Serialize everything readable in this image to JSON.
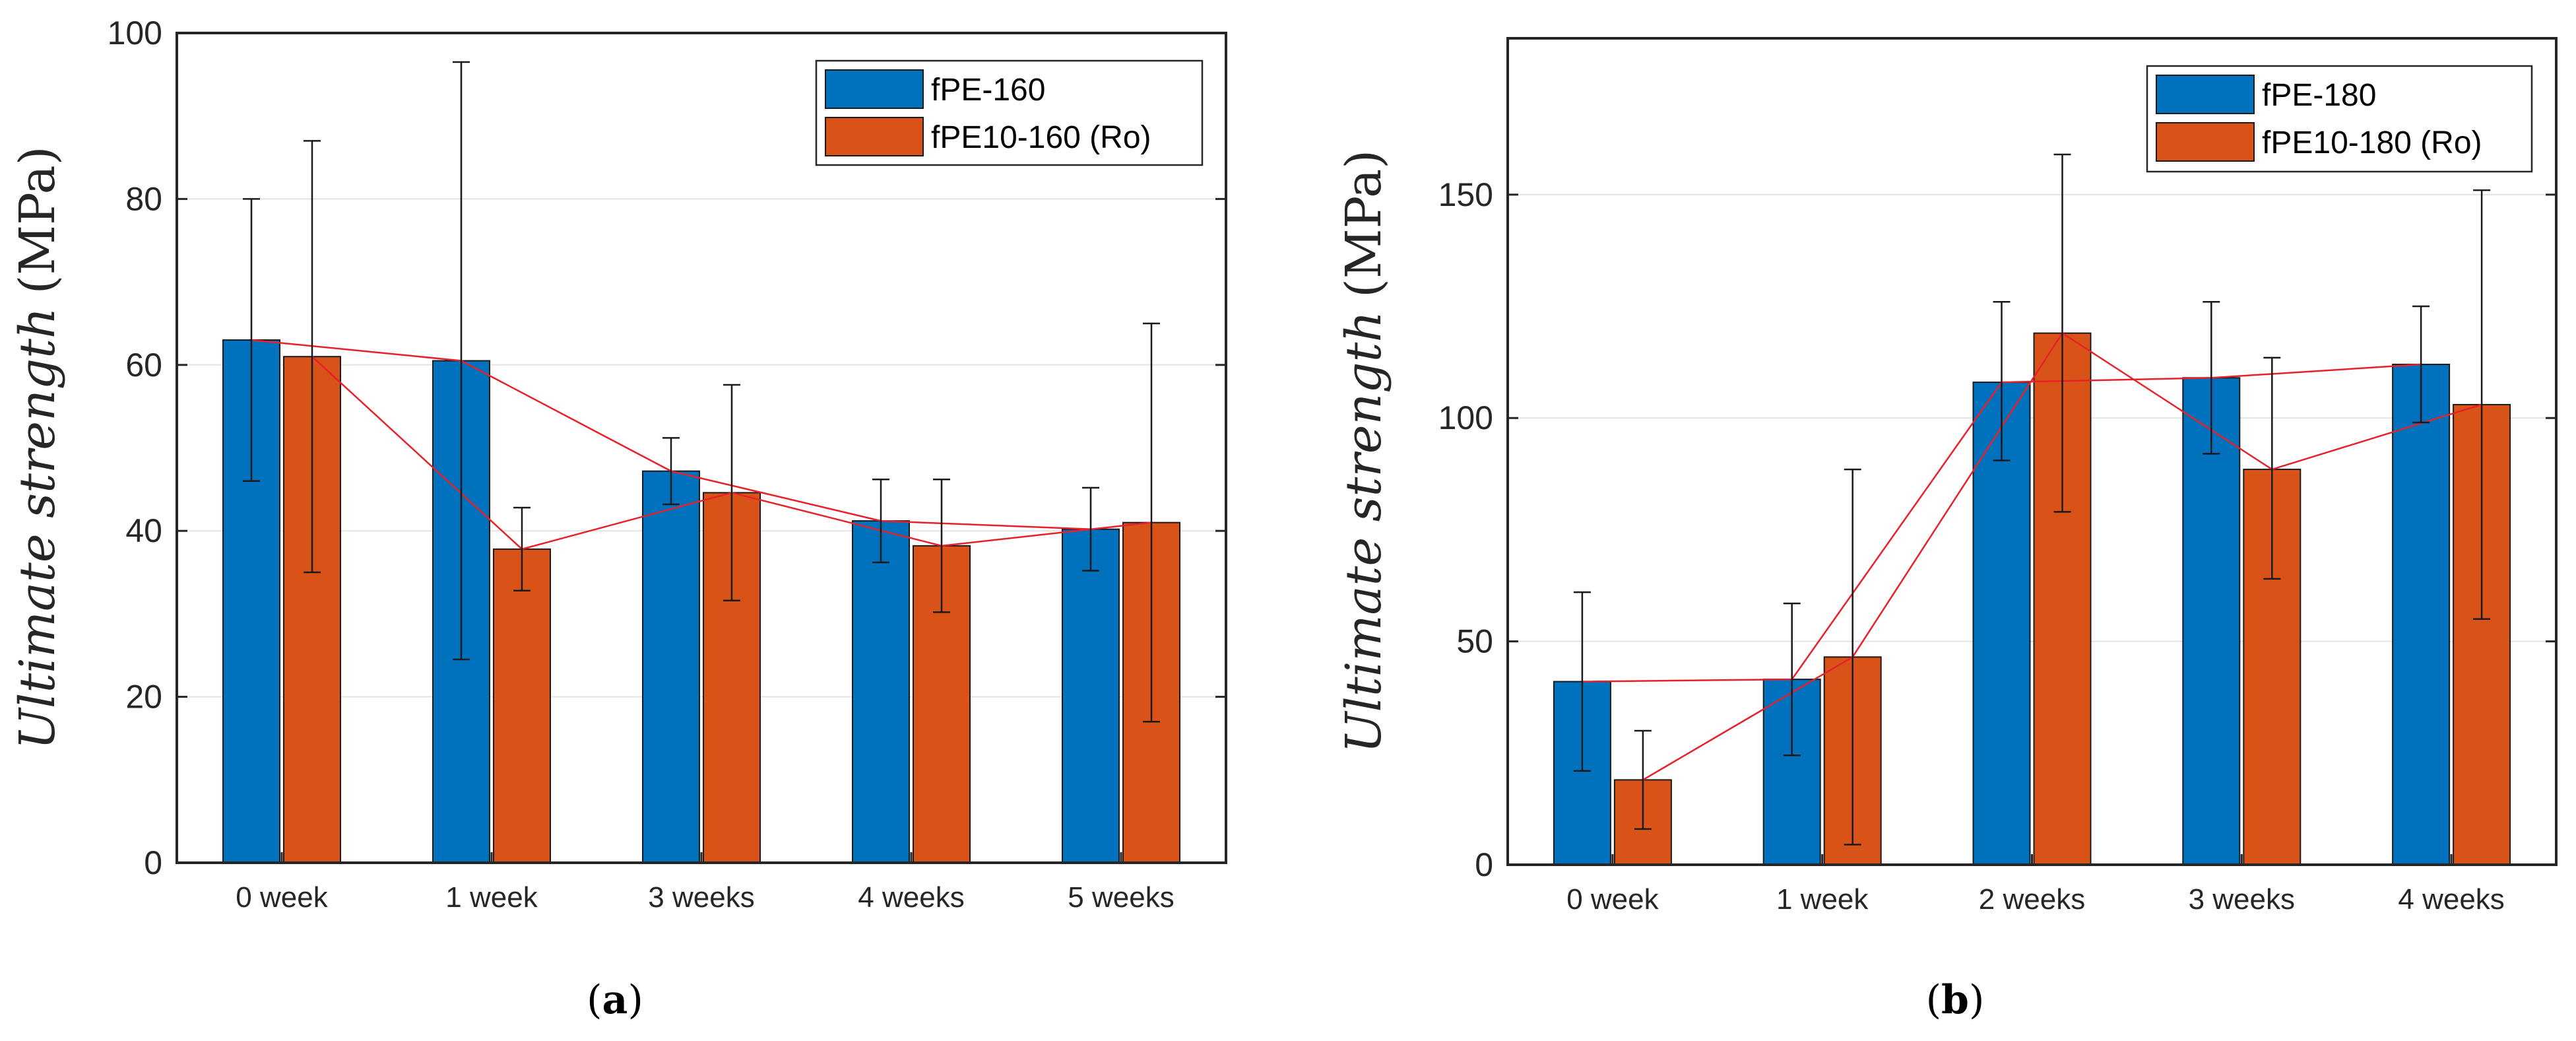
{
  "chart_data": [
    {
      "type": "bar",
      "panel_label": "a",
      "title": "",
      "xlabel": "",
      "ylabel": "Ultimate strength (MPa)",
      "ylabel_italic": "Ultimate strength",
      "ylabel_unit": "(MPa)",
      "ylim": [
        0,
        100
      ],
      "yticks": [
        0,
        20,
        40,
        60,
        80,
        100
      ],
      "grid": true,
      "legend_position": "top-right",
      "categories": [
        "0 week",
        "1 week",
        "3 weeks",
        "4 weeks",
        "5 weeks"
      ],
      "series": [
        {
          "name": "fPE-160",
          "color": "#0072bd",
          "values": [
            63,
            60.5,
            47.2,
            41.2,
            40.2
          ],
          "err_low": [
            46,
            24.5,
            43.2,
            36.2,
            35.2
          ],
          "err_high": [
            80,
            96.5,
            51.2,
            46.2,
            45.2
          ]
        },
        {
          "name": "fPE10-160 (Ro)",
          "color": "#d95319",
          "values": [
            61,
            37.8,
            44.6,
            38.2,
            41
          ],
          "err_low": [
            35,
            32.8,
            31.6,
            30.2,
            17
          ],
          "err_high": [
            87,
            42.8,
            57.6,
            46.2,
            65
          ]
        }
      ]
    },
    {
      "type": "bar",
      "panel_label": "b",
      "title": "",
      "xlabel": "",
      "ylabel": "Ultimate strength (MPa)",
      "ylabel_italic": "Ultimate strength",
      "ylabel_unit": "(MPa)",
      "ylim": [
        0,
        185
      ],
      "yticks": [
        0,
        50,
        100,
        150
      ],
      "grid": true,
      "legend_position": "top-right",
      "categories": [
        "0 week",
        "1 week",
        "2 weeks",
        "3 weeks",
        "4 weeks"
      ],
      "series": [
        {
          "name": "fPE-180",
          "color": "#0072bd",
          "values": [
            41,
            41.5,
            108,
            109,
            112
          ],
          "err_low": [
            21,
            24.5,
            90.5,
            92,
            99
          ],
          "err_high": [
            61,
            58.5,
            126,
            126,
            125
          ]
        },
        {
          "name": "fPE10-180 (Ro)",
          "color": "#d95319",
          "values": [
            19,
            46.5,
            119,
            88.5,
            103
          ],
          "err_low": [
            8,
            4.5,
            79,
            64,
            55
          ],
          "err_high": [
            30,
            88.5,
            159,
            113.5,
            151
          ]
        }
      ]
    }
  ]
}
